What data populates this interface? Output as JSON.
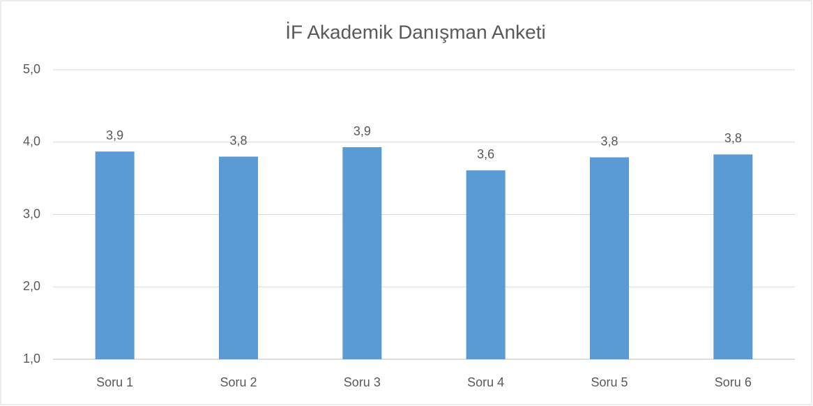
{
  "chart_data": {
    "type": "bar",
    "title": "İF Akademik Danışman Anketi",
    "categories": [
      "Soru 1",
      "Soru 2",
      "Soru 3",
      "Soru 4",
      "Soru 5",
      "Soru 6"
    ],
    "values": [
      3.87,
      3.8,
      3.93,
      3.61,
      3.79,
      3.83
    ],
    "value_labels": [
      "3,9",
      "3,8",
      "3,9",
      "3,6",
      "3,8",
      "3,8"
    ],
    "color": "#5b9bd5",
    "ylim": [
      1,
      5
    ],
    "yticks": [
      {
        "value": 1,
        "label": "1,0"
      },
      {
        "value": 2,
        "label": "2,0"
      },
      {
        "value": 3,
        "label": "3,0"
      },
      {
        "value": 4,
        "label": "4,0"
      },
      {
        "value": 5,
        "label": "5,0"
      }
    ],
    "grid": true
  }
}
